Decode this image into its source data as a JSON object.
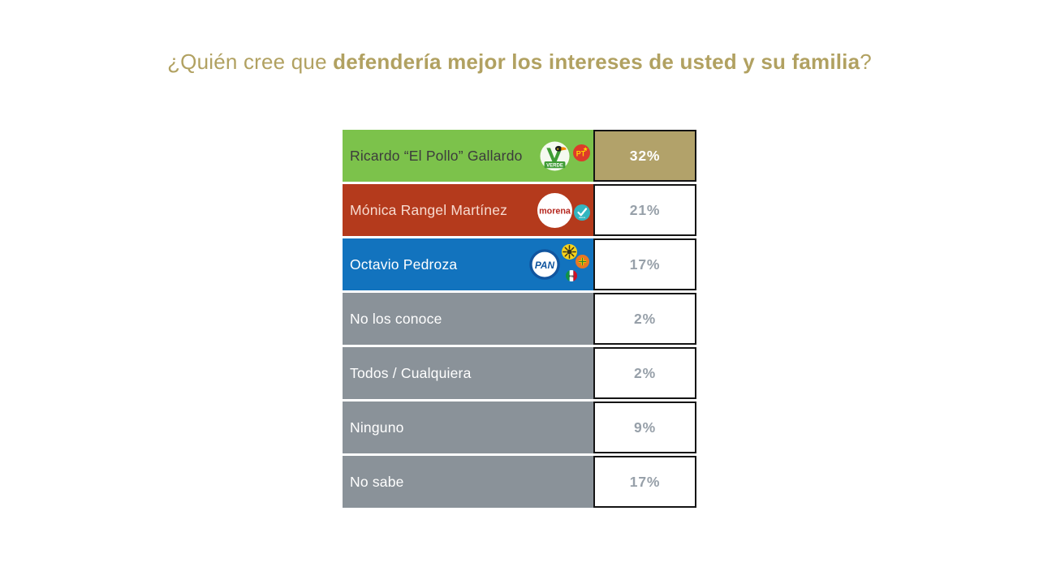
{
  "title": {
    "prefix": "¿Quién cree que ",
    "bold": "defendería mejor los intereses de usted y su familia",
    "suffix": "?"
  },
  "colors": {
    "background": "#ffffff",
    "title_gold": "#b1a161",
    "highlight_gold": "#b2a26a",
    "border_black": "#141414",
    "value_gray_text": "#97a0a9",
    "green_row": "#7cc24b",
    "red_row": "#b43a1c",
    "blue_row": "#1273be",
    "gray_row": "#8a9299"
  },
  "rows": [
    {
      "label": "Ricardo “El Pollo” Gallardo",
      "value": "32%",
      "row_color": "#7cc24b",
      "label_color": "#3c3c3c",
      "value_bg": "#b2a26a",
      "value_color": "#ffffff",
      "logos": [
        "pvem",
        "pt"
      ]
    },
    {
      "label": "Mónica Rangel Martínez",
      "value": "21%",
      "row_color": "#b43a1c",
      "label_color": "#f7dacf",
      "value_bg": "#ffffff",
      "value_color": "#97a0a9",
      "logos": [
        "morena",
        "na"
      ]
    },
    {
      "label": "Octavio Pedroza",
      "value": "17%",
      "row_color": "#1273be",
      "label_color": "#ffffff",
      "value_bg": "#ffffff",
      "value_color": "#97a0a9",
      "logos": [
        "pan",
        "prd",
        "cp",
        "pri"
      ]
    },
    {
      "label": "No los conoce",
      "value": "2%",
      "row_color": "#8a9299",
      "label_color": "#ffffff",
      "value_bg": "#ffffff",
      "value_color": "#97a0a9",
      "logos": []
    },
    {
      "label": "Todos / Cualquiera",
      "value": "2%",
      "row_color": "#8a9299",
      "label_color": "#ffffff",
      "value_bg": "#ffffff",
      "value_color": "#97a0a9",
      "logos": []
    },
    {
      "label": "Ninguno",
      "value": "9%",
      "row_color": "#8a9299",
      "label_color": "#ffffff",
      "value_bg": "#ffffff",
      "value_color": "#97a0a9",
      "logos": []
    },
    {
      "label": "No sabe",
      "value": "17%",
      "row_color": "#8a9299",
      "label_color": "#ffffff",
      "value_bg": "#ffffff",
      "value_color": "#97a0a9",
      "logos": []
    }
  ],
  "chart_data": {
    "type": "table",
    "title": "¿Quién cree que defendería mejor los intereses de usted y su familia?",
    "categories": [
      "Ricardo “El Pollo” Gallardo",
      "Mónica Rangel Martínez",
      "Octavio Pedroza",
      "No los conoce",
      "Todos / Cualquiera",
      "Ninguno",
      "No sabe"
    ],
    "values": [
      32,
      21,
      17,
      2,
      2,
      9,
      17
    ],
    "unit": "%",
    "highlighted_category": "Ricardo “El Pollo” Gallardo",
    "party_logos_by_category": {
      "Ricardo “El Pollo” Gallardo": [
        "Partido Verde",
        "PT"
      ],
      "Mónica Rangel Martínez": [
        "Morena",
        "Nueva Alianza"
      ],
      "Octavio Pedroza": [
        "PAN",
        "PRD",
        "Conciencia Popular",
        "PRI"
      ]
    },
    "legend_position": "none",
    "grid": false
  }
}
